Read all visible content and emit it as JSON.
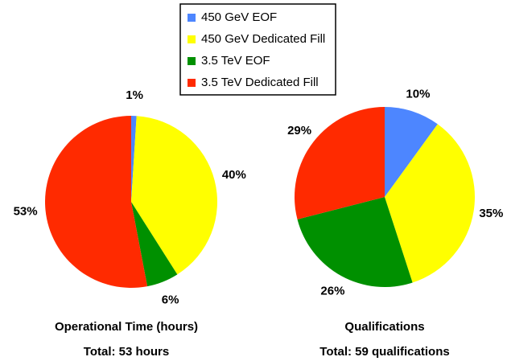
{
  "legend": {
    "labels": [
      "450 GeV EOF",
      "450 GeV Dedicated Fill",
      "3.5 TeV EOF",
      "3.5 TeV Dedicated Fill"
    ],
    "colors": [
      "#4d86ff",
      "#ffff00",
      "#009000",
      "#ff2a00"
    ]
  },
  "chart_data": [
    {
      "type": "pie",
      "title": "Operational Time (hours)",
      "subtitle": "Total: 53 hours",
      "values": [
        1,
        40,
        6,
        53
      ],
      "value_labels": [
        "1%",
        "40%",
        "6%",
        "53%"
      ]
    },
    {
      "type": "pie",
      "title": "Qualifications",
      "subtitle": "Total: 59 qualifications",
      "values": [
        10,
        35,
        26,
        29
      ],
      "value_labels": [
        "10%",
        "35%",
        "26%",
        "29%"
      ]
    }
  ]
}
